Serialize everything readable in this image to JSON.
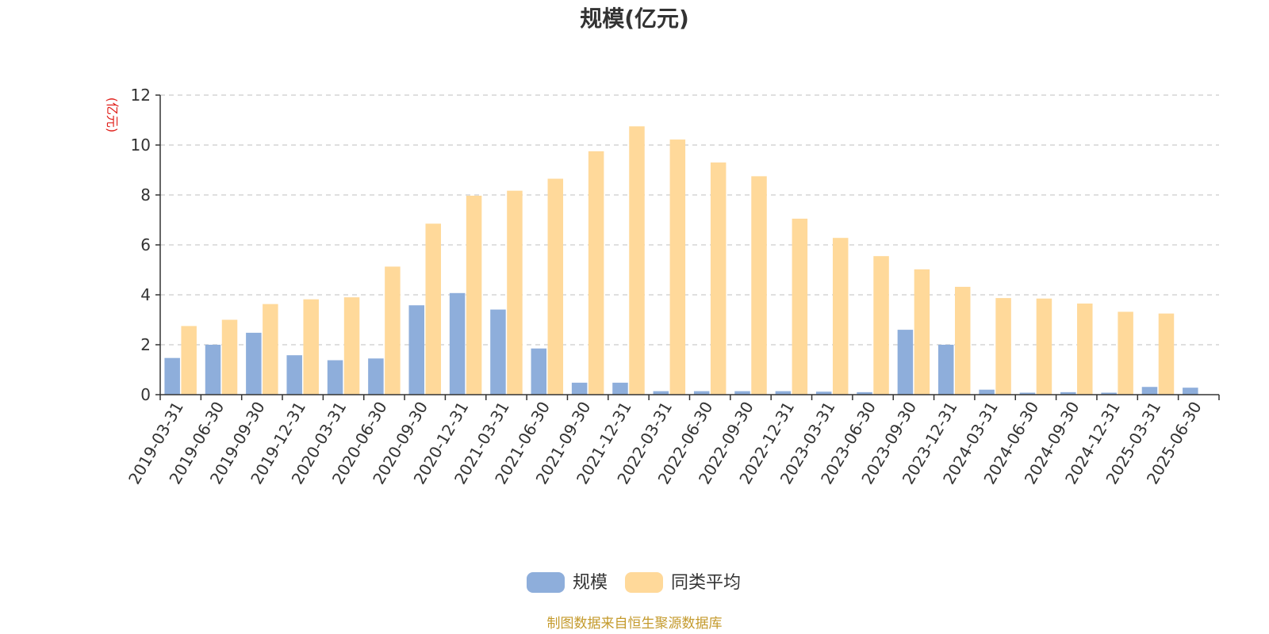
{
  "chart_data": {
    "type": "bar",
    "title": "规模(亿元)",
    "ylabel": "(亿元)",
    "xlabel": "",
    "ylim": [
      0,
      12
    ],
    "yticks": [
      0,
      2,
      4,
      6,
      8,
      10,
      12
    ],
    "grid": true,
    "legend_position": "bottom-center",
    "categories": [
      "2019-03-31",
      "2019-06-30",
      "2019-09-30",
      "2019-12-31",
      "2020-03-31",
      "2020-06-30",
      "2020-09-30",
      "2020-12-31",
      "2021-03-31",
      "2021-06-30",
      "2021-09-30",
      "2021-12-31",
      "2022-03-31",
      "2022-06-30",
      "2022-09-30",
      "2022-12-31",
      "2023-03-31",
      "2023-06-30",
      "2023-09-30",
      "2023-12-31",
      "2024-03-31",
      "2024-06-30",
      "2024-09-30",
      "2024-12-31",
      "2025-03-31",
      "2025-06-30"
    ],
    "series": [
      {
        "name": "规模",
        "color": "#8eaedb",
        "values": [
          1.47,
          2.0,
          2.48,
          1.58,
          1.38,
          1.45,
          3.58,
          4.07,
          3.41,
          1.85,
          0.48,
          0.48,
          0.14,
          0.14,
          0.14,
          0.14,
          0.12,
          0.1,
          2.6,
          2.0,
          0.2,
          0.08,
          0.1,
          0.08,
          0.31,
          0.28
        ]
      },
      {
        "name": "同类平均",
        "color": "#ffd99a",
        "values": [
          2.75,
          3.0,
          3.63,
          3.82,
          3.9,
          5.13,
          6.85,
          7.97,
          8.17,
          8.65,
          9.75,
          10.75,
          10.22,
          9.3,
          8.75,
          7.05,
          6.28,
          5.55,
          5.02,
          4.32,
          3.87,
          3.85,
          3.65,
          3.32,
          3.25,
          null
        ]
      }
    ]
  },
  "footer": {
    "source": "制图数据来自恒生聚源数据库"
  }
}
